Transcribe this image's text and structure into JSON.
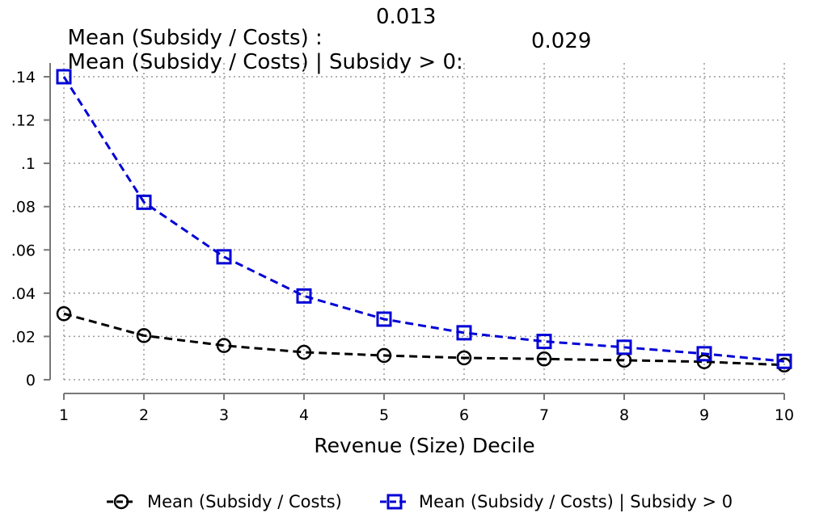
{
  "header": {
    "line1_label": "Mean (Subsidy / Costs) :",
    "line1_value": "0.013",
    "line2_label": "Mean (Subsidy / Costs) | Subsidy > 0:",
    "line2_value": "0.029"
  },
  "chart_data": {
    "type": "line",
    "title": "",
    "xlabel": "Revenue (Size) Decile",
    "ylabel": "",
    "x": [
      1,
      2,
      3,
      4,
      5,
      6,
      7,
      8,
      9,
      10
    ],
    "xlim": [
      1,
      10
    ],
    "ylim": [
      0,
      0.14
    ],
    "x_ticks": [
      1,
      2,
      3,
      4,
      5,
      6,
      7,
      8,
      9,
      10
    ],
    "y_ticks": [
      0,
      0.02,
      0.04,
      0.06,
      0.08,
      0.1,
      0.12,
      0.14
    ],
    "y_tick_labels": [
      "0",
      ".02",
      ".04",
      ".06",
      ".08",
      ".1",
      ".12",
      ".14"
    ],
    "grid": true,
    "legend_position": "bottom",
    "series": [
      {
        "name": "Mean (Subsidy / Costs)",
        "color": "#000000",
        "marker": "circle",
        "line_style": "dashed",
        "values": [
          0.0305,
          0.0204,
          0.0158,
          0.0127,
          0.0112,
          0.0101,
          0.0096,
          0.009,
          0.0083,
          0.0068
        ]
      },
      {
        "name": "Mean (Subsidy / Costs) | Subsidy > 0",
        "color": "#0000d6",
        "marker": "square",
        "line_style": "dashed",
        "values": [
          0.14,
          0.082,
          0.0568,
          0.0387,
          0.028,
          0.0217,
          0.0177,
          0.015,
          0.012,
          0.0085
        ]
      }
    ]
  }
}
